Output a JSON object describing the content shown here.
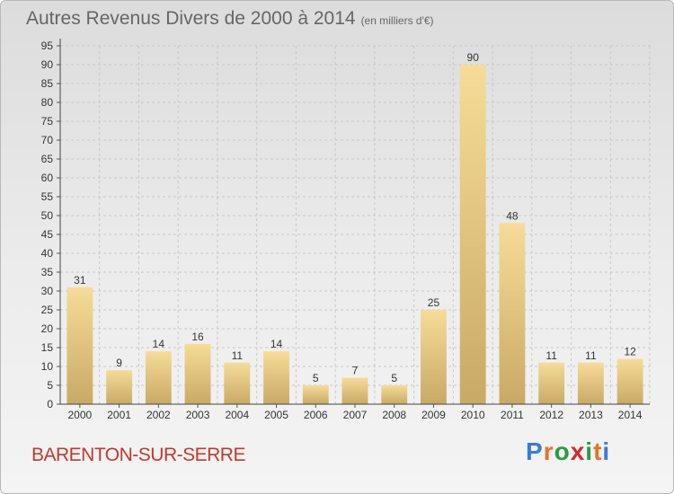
{
  "header": {
    "title": "Autres Revenus Divers de 2000 à 2014",
    "unit": "(en milliers d'€)"
  },
  "footer": {
    "town": "BARENTON-SUR-SERRE",
    "logo": "Proxiti"
  },
  "colors": {
    "bar_top": "#f6dc98",
    "bar_bottom": "#c9a966",
    "grid": "#c8c8c8",
    "axis_text": "#333333",
    "town_text": "#c0392b"
  },
  "chart_data": {
    "type": "bar",
    "title": "Autres Revenus Divers de 2000 à 2014",
    "subtitle": "(en milliers d'€)",
    "categories": [
      "2000",
      "2001",
      "2002",
      "2003",
      "2004",
      "2005",
      "2006",
      "2007",
      "2008",
      "2009",
      "2010",
      "2011",
      "2012",
      "2013",
      "2014"
    ],
    "values": [
      31,
      9,
      14,
      16,
      11,
      14,
      5,
      7,
      5,
      25,
      90,
      48,
      11,
      11,
      12
    ],
    "ylim": [
      0,
      95
    ],
    "yticks": [
      0,
      5,
      10,
      15,
      20,
      25,
      30,
      35,
      40,
      45,
      50,
      55,
      60,
      65,
      70,
      75,
      80,
      85,
      90,
      95
    ],
    "grid": true,
    "legend": "none"
  }
}
